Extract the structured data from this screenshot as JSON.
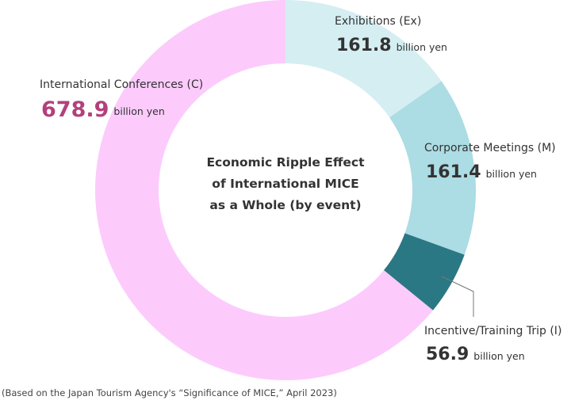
{
  "chart_data": {
    "type": "pie",
    "donut": true,
    "title": "Economic Ripple Effect\nof International MICE\nas a Whole (by event)",
    "categories": [
      "Exhibitions (Ex)",
      "Corporate Meetings (M)",
      "Incentive/Training Trip (I)",
      "International Conferences (C)"
    ],
    "values": [
      161.8,
      161.4,
      56.9,
      678.9
    ],
    "colors": [
      "#d5eef2",
      "#acdce4",
      "#2a7884",
      "#fccbfc"
    ],
    "unit": "billion yen",
    "note": "(Based on the Japan Tourism Agency's “Significance of MICE,” April 2023)"
  }
}
